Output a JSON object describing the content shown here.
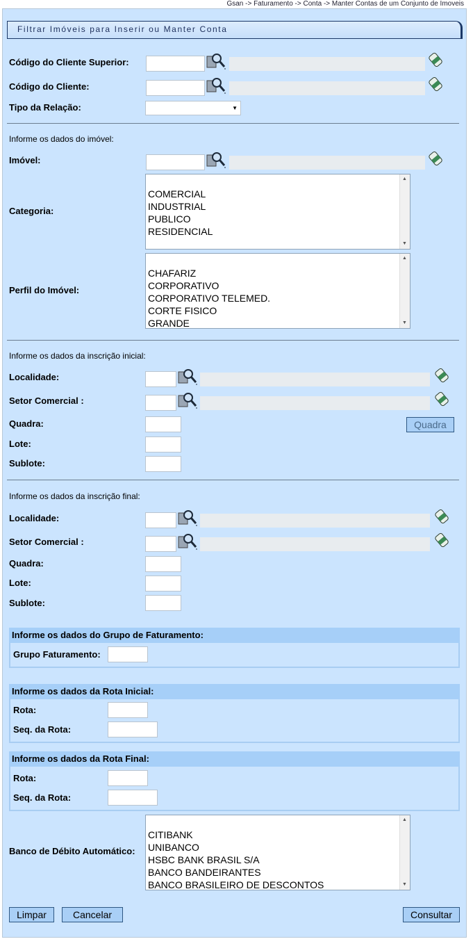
{
  "breadcrumb": "Gsan -> Faturamento -> Conta -> Manter Contas de um Conjunto de Imoveis",
  "title": "Filtrar Imóveis para Inserir ou Manter Conta",
  "client_section": {
    "superior": "Código do Cliente Superior:",
    "cliente": "Código do Cliente:",
    "tipo_relacao": "Tipo da Relação:"
  },
  "imovel_section": {
    "heading": "Informe os dados do imóvel:",
    "imovel": "Imóvel:",
    "categoria": {
      "label": "Categoria:",
      "options": [
        "COMERCIAL",
        "INDUSTRIAL",
        "PUBLICO",
        "RESIDENCIAL"
      ]
    },
    "perfil": {
      "label": "Perfil do Imóvel:",
      "options": [
        "CHAFARIZ",
        "CORPORATIVO",
        "CORPORATIVO TELEMED.",
        "CORTE FISICO",
        "GRANDE"
      ]
    }
  },
  "inscricao_inicial": {
    "heading": "Informe os dados da inscrição inicial:",
    "localidade": "Localidade:",
    "setor": "Setor Comercial :",
    "quadra": "Quadra:",
    "lote": "Lote:",
    "sublote": "Sublote:",
    "quadra_button": "Quadra"
  },
  "inscricao_final": {
    "heading": "Informe os dados da inscrição final:",
    "localidade": "Localidade:",
    "setor": "Setor Comercial :",
    "quadra": "Quadra:",
    "lote": "Lote:",
    "sublote": "Sublote:"
  },
  "grupo": {
    "heading": "Informe os dados do Grupo de Faturamento:",
    "label": "Grupo Faturamento:"
  },
  "rota_inicial": {
    "heading": "Informe os dados da Rota Inicial:",
    "rota": "Rota:",
    "seq": "Seq. da Rota:"
  },
  "rota_final": {
    "heading": "Informe os dados da Rota Final:",
    "rota": "Rota:",
    "seq": "Seq. da Rota:"
  },
  "banco": {
    "label": "Banco de Débito Automático:",
    "options": [
      "CITIBANK",
      "UNIBANCO",
      "HSBC BANK BRASIL S/A",
      "BANCO BANDEIRANTES",
      "BANCO BRASILEIRO DE DESCONTOS"
    ]
  },
  "buttons": {
    "limpar": "Limpar",
    "cancelar": "Cancelar",
    "consultar": "Consultar"
  }
}
